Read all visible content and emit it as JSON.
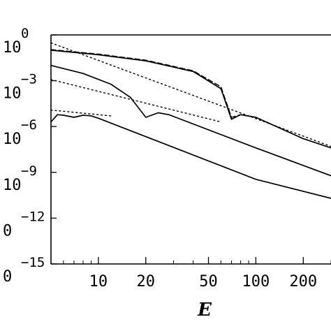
{
  "chart_data": {
    "type": "line",
    "xlabel": "E",
    "ylabel": "",
    "x_scale": "log",
    "y_scale": "log",
    "xlim": [
      5,
      300
    ],
    "ylim": [
      1e-15,
      1
    ],
    "grid": false,
    "x_ticks": [
      {
        "value": 10,
        "label": "10"
      },
      {
        "value": 20,
        "label": "20"
      },
      {
        "value": 50,
        "label": "50"
      },
      {
        "value": 100,
        "label": "100"
      },
      {
        "value": 200,
        "label": "200"
      }
    ],
    "y_ticks": [
      {
        "value": 1,
        "base": "10",
        "exp": "0"
      },
      {
        "value": 0.001,
        "base": "10",
        "exp": "−3"
      },
      {
        "value": 1e-06,
        "base": "10",
        "exp": "−6"
      },
      {
        "value": 1e-09,
        "base": "10",
        "exp": "−9"
      },
      {
        "value": 1e-12,
        "base": "0",
        "exp": "−12"
      },
      {
        "value": 1e-15,
        "base": "0",
        "exp": "−15"
      }
    ],
    "series": [
      {
        "style": "solid",
        "points": [
          [
            5,
            0.1
          ],
          [
            10,
            0.05
          ],
          [
            20,
            0.02
          ],
          [
            40,
            0.004
          ],
          [
            60,
            0.0003
          ],
          [
            70,
            3e-06
          ],
          [
            80,
            6e-06
          ],
          [
            100,
            4e-06
          ],
          [
            200,
            1.6e-07
          ],
          [
            300,
            4e-08
          ]
        ]
      },
      {
        "style": "dashed",
        "points": [
          [
            5,
            0.11
          ],
          [
            10,
            0.055
          ],
          [
            20,
            0.022
          ],
          [
            40,
            0.0045
          ],
          [
            60,
            0.0004
          ],
          [
            70,
            4e-06
          ],
          [
            80,
            6e-06
          ],
          [
            100,
            4e-06
          ],
          [
            200,
            1.6e-07
          ],
          [
            300,
            4e-08
          ]
        ]
      },
      {
        "style": "dotted",
        "points": [
          [
            5,
            0.3
          ],
          [
            300,
            5e-08
          ]
        ]
      },
      {
        "style": "solid",
        "points": [
          [
            5,
            0.01
          ],
          [
            8,
            0.003
          ],
          [
            12,
            0.0006
          ],
          [
            16,
            8e-05
          ],
          [
            20,
            4e-06
          ],
          [
            24,
            8e-06
          ],
          [
            28,
            6e-06
          ],
          [
            100,
            4e-08
          ],
          [
            300,
            6e-10
          ]
        ]
      },
      {
        "style": "dotted",
        "points": [
          [
            5,
            0.0012
          ],
          [
            60,
            2e-06
          ]
        ]
      },
      {
        "style": "solid",
        "points": [
          [
            5,
            2e-06
          ],
          [
            5.5,
            6e-06
          ],
          [
            6,
            5.5e-06
          ],
          [
            7,
            4e-06
          ],
          [
            8,
            5.5e-06
          ],
          [
            9,
            5e-06
          ],
          [
            10,
            3.5e-06
          ],
          [
            100,
            3.5e-10
          ],
          [
            300,
            2e-11
          ]
        ]
      },
      {
        "style": "dotted",
        "points": [
          [
            5,
            1.2e-05
          ],
          [
            12,
            5e-06
          ]
        ]
      }
    ]
  }
}
